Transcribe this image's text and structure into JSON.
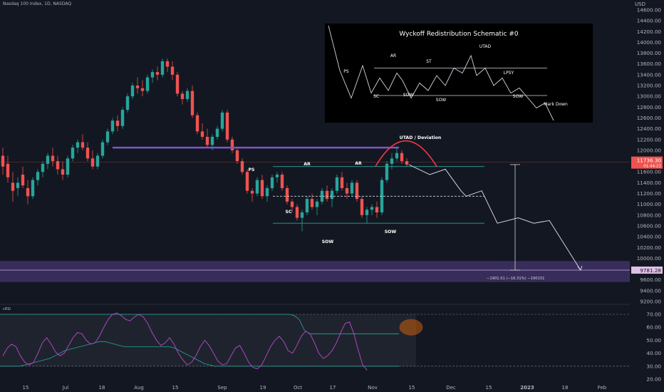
{
  "header": {
    "symbol": "Nasdaq 100 Index, 1D, NASDAQ",
    "currency": "USD"
  },
  "colors": {
    "background": "#131722",
    "up": "#26a69a",
    "down": "#ef5350",
    "purple": "#7e57c2",
    "grid_text": "#b2b5be",
    "rsi_line": "#ab47bc",
    "rsi_band": "#26a69a"
  },
  "chart_data": [
    {
      "type": "candlestick",
      "title": "Nasdaq 100 Index, 1D, NASDAQ",
      "y_axis": {
        "label": "USD",
        "ticks": [
          14600,
          14400,
          14200,
          14000,
          13800,
          13600,
          13400,
          13200,
          13000,
          12800,
          12600,
          12400,
          12200,
          12000,
          11800,
          11600,
          11400,
          11200,
          11000,
          10800,
          10600,
          10400,
          10200,
          10000,
          9800,
          9600,
          9400,
          9200
        ],
        "tick_labels": [
          "14600.00",
          "14400.00",
          "14200.00",
          "14000.00",
          "13800.00",
          "13600.00",
          "13400.00",
          "13200.00",
          "13000.00",
          "12800.00",
          "12600.00",
          "12400.00",
          "12200.00",
          "12000.00",
          "11800.00",
          "11600.00",
          "11400.00",
          "11200.00",
          "11000.00",
          "10800.00",
          "10600.00",
          "10400.00",
          "10200.00",
          "10000.00",
          "9800.00",
          "9600.00",
          "9400.00",
          "9200.00"
        ],
        "range": [
          9150,
          14700
        ]
      },
      "x_axis": {
        "ticks": [
          "15",
          "Jul",
          "18",
          "Aug",
          "15",
          "Sep",
          "19",
          "Oct",
          "17",
          "Nov",
          "15",
          "Dec",
          "15",
          "2023",
          "18",
          "Feb"
        ],
        "grid": false
      },
      "price_labels": {
        "last": "11736.30",
        "last_sub": "01:44:21",
        "target": "9781.28"
      },
      "measure_label": "−1901.51 (−16.31%) −190151",
      "annotations": [
        "PS",
        "AR",
        "SC",
        "SOW",
        "AR",
        "SOW",
        "UTAD / Deviation"
      ],
      "candles": [
        {
          "o": 11900,
          "h": 12050,
          "l": 11550,
          "c": 11700
        },
        {
          "o": 11750,
          "h": 11900,
          "l": 11400,
          "c": 11500
        },
        {
          "o": 11400,
          "h": 11600,
          "l": 11050,
          "c": 11250
        },
        {
          "o": 11300,
          "h": 11500,
          "l": 11150,
          "c": 11400
        },
        {
          "o": 11550,
          "h": 11700,
          "l": 11300,
          "c": 11350
        },
        {
          "o": 11300,
          "h": 11450,
          "l": 11000,
          "c": 11150
        },
        {
          "o": 11150,
          "h": 11500,
          "l": 11100,
          "c": 11450
        },
        {
          "o": 11450,
          "h": 11650,
          "l": 11350,
          "c": 11600
        },
        {
          "o": 11600,
          "h": 11800,
          "l": 11500,
          "c": 11750
        },
        {
          "o": 11750,
          "h": 11950,
          "l": 11650,
          "c": 11900
        },
        {
          "o": 11900,
          "h": 12050,
          "l": 11700,
          "c": 11800
        },
        {
          "o": 11800,
          "h": 11900,
          "l": 11550,
          "c": 11650
        },
        {
          "o": 11650,
          "h": 11800,
          "l": 11450,
          "c": 11550
        },
        {
          "o": 11550,
          "h": 11900,
          "l": 11500,
          "c": 11850
        },
        {
          "o": 11850,
          "h": 12100,
          "l": 11800,
          "c": 12050
        },
        {
          "o": 12050,
          "h": 12200,
          "l": 11950,
          "c": 12150
        },
        {
          "o": 12150,
          "h": 12300,
          "l": 12000,
          "c": 12050
        },
        {
          "o": 12050,
          "h": 12150,
          "l": 11800,
          "c": 11850
        },
        {
          "o": 11850,
          "h": 12000,
          "l": 11650,
          "c": 11700
        },
        {
          "o": 11700,
          "h": 11950,
          "l": 11650,
          "c": 11900
        },
        {
          "o": 11900,
          "h": 12200,
          "l": 11850,
          "c": 12150
        },
        {
          "o": 12150,
          "h": 12400,
          "l": 12100,
          "c": 12350
        },
        {
          "o": 12350,
          "h": 12600,
          "l": 12300,
          "c": 12550
        },
        {
          "o": 12550,
          "h": 12650,
          "l": 12350,
          "c": 12450
        },
        {
          "o": 12450,
          "h": 12800,
          "l": 12400,
          "c": 12750
        },
        {
          "o": 12750,
          "h": 13050,
          "l": 12700,
          "c": 13000
        },
        {
          "o": 13000,
          "h": 13250,
          "l": 12950,
          "c": 13200
        },
        {
          "o": 13200,
          "h": 13350,
          "l": 13050,
          "c": 13150
        },
        {
          "o": 13150,
          "h": 13300,
          "l": 13000,
          "c": 13100
        },
        {
          "o": 13100,
          "h": 13400,
          "l": 13050,
          "c": 13350
        },
        {
          "o": 13350,
          "h": 13500,
          "l": 13250,
          "c": 13450
        },
        {
          "o": 13450,
          "h": 13550,
          "l": 13300,
          "c": 13400
        },
        {
          "o": 13400,
          "h": 13700,
          "l": 13350,
          "c": 13650
        },
        {
          "o": 13650,
          "h": 13700,
          "l": 13450,
          "c": 13550
        },
        {
          "o": 13550,
          "h": 13650,
          "l": 13300,
          "c": 13400
        },
        {
          "o": 13400,
          "h": 13450,
          "l": 13000,
          "c": 13050
        },
        {
          "o": 13050,
          "h": 13100,
          "l": 12850,
          "c": 12950
        },
        {
          "o": 12950,
          "h": 13150,
          "l": 12900,
          "c": 13100
        },
        {
          "o": 13100,
          "h": 13200,
          "l": 12600,
          "c": 12650
        },
        {
          "o": 12650,
          "h": 12700,
          "l": 12300,
          "c": 12350
        },
        {
          "o": 12350,
          "h": 12500,
          "l": 12200,
          "c": 12250
        },
        {
          "o": 12250,
          "h": 12400,
          "l": 12050,
          "c": 12100
        },
        {
          "o": 12100,
          "h": 12300,
          "l": 12000,
          "c": 12250
        },
        {
          "o": 12250,
          "h": 12450,
          "l": 12200,
          "c": 12400
        },
        {
          "o": 12400,
          "h": 12750,
          "l": 12350,
          "c": 12700
        },
        {
          "o": 12700,
          "h": 12750,
          "l": 12150,
          "c": 12200
        },
        {
          "o": 12200,
          "h": 12250,
          "l": 11950,
          "c": 12000
        },
        {
          "o": 12000,
          "h": 12050,
          "l": 11750,
          "c": 11800
        },
        {
          "o": 11800,
          "h": 11850,
          "l": 11550,
          "c": 11600
        },
        {
          "o": 11600,
          "h": 11650,
          "l": 11200,
          "c": 11250
        },
        {
          "o": 11250,
          "h": 11300,
          "l": 11050,
          "c": 11200
        },
        {
          "o": 11200,
          "h": 11500,
          "l": 11150,
          "c": 11450
        },
        {
          "o": 11450,
          "h": 11550,
          "l": 11100,
          "c": 11150
        },
        {
          "o": 11150,
          "h": 11350,
          "l": 11050,
          "c": 11300
        },
        {
          "o": 11300,
          "h": 11550,
          "l": 11250,
          "c": 11500
        },
        {
          "o": 11500,
          "h": 11600,
          "l": 11400,
          "c": 11550
        },
        {
          "o": 11550,
          "h": 11600,
          "l": 11250,
          "c": 11300
        },
        {
          "o": 11300,
          "h": 11350,
          "l": 11000,
          "c": 11050
        },
        {
          "o": 11050,
          "h": 11100,
          "l": 10850,
          "c": 10950
        },
        {
          "o": 10950,
          "h": 11000,
          "l": 10700,
          "c": 10750
        },
        {
          "o": 10750,
          "h": 10900,
          "l": 10500,
          "c": 10850
        },
        {
          "o": 10850,
          "h": 11150,
          "l": 10800,
          "c": 11100
        },
        {
          "o": 11100,
          "h": 11200,
          "l": 10900,
          "c": 10950
        },
        {
          "o": 10950,
          "h": 11100,
          "l": 10800,
          "c": 11050
        },
        {
          "o": 11050,
          "h": 11300,
          "l": 11000,
          "c": 11250
        },
        {
          "o": 11250,
          "h": 11350,
          "l": 11050,
          "c": 11100
        },
        {
          "o": 11100,
          "h": 11300,
          "l": 10950,
          "c": 11250
        },
        {
          "o": 11250,
          "h": 11550,
          "l": 11200,
          "c": 11500
        },
        {
          "o": 11500,
          "h": 11600,
          "l": 11250,
          "c": 11300
        },
        {
          "o": 11300,
          "h": 11400,
          "l": 11100,
          "c": 11200
        },
        {
          "o": 11200,
          "h": 11450,
          "l": 11150,
          "c": 11400
        },
        {
          "o": 11400,
          "h": 11450,
          "l": 11050,
          "c": 11100
        },
        {
          "o": 11100,
          "h": 11150,
          "l": 10750,
          "c": 10800
        },
        {
          "o": 10800,
          "h": 10950,
          "l": 10650,
          "c": 10900
        },
        {
          "o": 10900,
          "h": 11000,
          "l": 10800,
          "c": 10950
        },
        {
          "o": 10950,
          "h": 11050,
          "l": 10750,
          "c": 10850
        },
        {
          "o": 10850,
          "h": 11500,
          "l": 10800,
          "c": 11450
        },
        {
          "o": 11450,
          "h": 11800,
          "l": 11400,
          "c": 11750
        },
        {
          "o": 11750,
          "h": 11950,
          "l": 11650,
          "c": 11850
        },
        {
          "o": 11850,
          "h": 12050,
          "l": 11800,
          "c": 11950
        },
        {
          "o": 11950,
          "h": 12000,
          "l": 11750,
          "c": 11800
        },
        {
          "o": 11800,
          "h": 11850,
          "l": 11700,
          "c": 11736
        }
      ],
      "levels": {
        "purple_resistance": 12050,
        "upper_range": 11700,
        "mid_range_dashed": 11150,
        "lower_range": 10650,
        "target": 9781.28,
        "target_zone": [
          9560,
          9950
        ]
      },
      "projection": [
        [
          0,
          11736
        ],
        [
          4,
          11550
        ],
        [
          7,
          11650
        ],
        [
          10,
          11250
        ],
        [
          11,
          11150
        ],
        [
          14,
          11250
        ],
        [
          17,
          10650
        ],
        [
          21,
          10750
        ],
        [
          24,
          10650
        ],
        [
          27,
          10700
        ],
        [
          33,
          9781
        ]
      ]
    },
    {
      "type": "line",
      "title": "cRSI",
      "y_axis": {
        "ticks": [
          70,
          60,
          50,
          40,
          30,
          20
        ],
        "tick_labels": [
          "70.00",
          "60.00",
          "50.00",
          "40.00",
          "30.00",
          "20.00"
        ],
        "range": [
          20,
          73
        ]
      },
      "series": [
        {
          "values": [
            38,
            44,
            47,
            45,
            38,
            33,
            31,
            33,
            40,
            48,
            52,
            47,
            41,
            38,
            40,
            46,
            52,
            56,
            55,
            50,
            47,
            48,
            53,
            60,
            66,
            70,
            71,
            69,
            66,
            65,
            68,
            70,
            68,
            63,
            56,
            50,
            46,
            48,
            52,
            47,
            40,
            35,
            31,
            33,
            38,
            45,
            50,
            46,
            40,
            34,
            31,
            32,
            38,
            44,
            46,
            40,
            33,
            29,
            28,
            31,
            38,
            45,
            50,
            53,
            49,
            42,
            40,
            46,
            53,
            57,
            55,
            48,
            40,
            36,
            38,
            42,
            48,
            56,
            63,
            64,
            55,
            42,
            31,
            27
          ]
        },
        {
          "values": [
            70,
            70,
            70,
            70,
            70,
            70,
            70,
            70,
            70,
            70,
            70,
            70,
            70,
            70,
            70,
            70,
            70,
            70,
            70,
            70,
            70,
            70,
            70,
            70,
            70,
            70,
            70,
            70,
            70,
            70,
            70,
            70,
            70,
            70,
            70,
            70,
            70,
            70,
            70,
            70,
            70,
            70,
            70,
            70,
            70,
            70,
            70,
            70,
            70,
            70,
            70,
            70,
            70,
            70,
            70,
            70,
            70,
            70,
            70,
            69,
            66,
            58,
            55,
            55,
            55,
            55,
            55,
            55,
            55,
            55,
            55,
            55,
            55,
            55,
            55,
            55,
            55,
            55,
            55,
            55,
            55
          ]
        },
        {
          "values": [
            30,
            30,
            30,
            30,
            30,
            31,
            32,
            33,
            34,
            35,
            36,
            38,
            40,
            42,
            43,
            44,
            45,
            46,
            47,
            48,
            49,
            49,
            48,
            47,
            46,
            45,
            45,
            45,
            45,
            45,
            45,
            45,
            45,
            45,
            45,
            44,
            42,
            40,
            38,
            36,
            34,
            32,
            31,
            30,
            30,
            30,
            30,
            30,
            30,
            30,
            30,
            30,
            30,
            30,
            30,
            30,
            30,
            30,
            30,
            30,
            30,
            30,
            30,
            30,
            30,
            30,
            30,
            30,
            30,
            30,
            30,
            30,
            30,
            30,
            30,
            30,
            30,
            30,
            30,
            30,
            30
          ]
        }
      ]
    },
    {
      "type": "line",
      "title": "Wyckoff Redistribution Schematic #0",
      "labels": [
        "PS",
        "AR",
        "SC",
        "SOW",
        "ST",
        "SOW",
        "UTAD",
        "LPSY",
        "SOW",
        "Mark Down"
      ],
      "points": [
        [
          0,
          14500
        ],
        [
          4,
          13600
        ],
        [
          8,
          13050
        ],
        [
          12,
          13700
        ],
        [
          15,
          13150
        ],
        [
          18,
          13450
        ],
        [
          21,
          13200
        ],
        [
          24,
          13550
        ],
        [
          26,
          13400
        ],
        [
          29,
          13050
        ],
        [
          32,
          13350
        ],
        [
          35,
          13200
        ],
        [
          38,
          13500
        ],
        [
          41,
          13300
        ],
        [
          44,
          13650
        ],
        [
          47,
          13550
        ],
        [
          50,
          13900
        ],
        [
          52,
          13500
        ],
        [
          55,
          13650
        ],
        [
          58,
          13300
        ],
        [
          61,
          13450
        ],
        [
          64,
          13150
        ],
        [
          67,
          13250
        ],
        [
          70,
          13050
        ],
        [
          73,
          12850
        ],
        [
          76,
          12950
        ],
        [
          79,
          12600
        ]
      ]
    }
  ]
}
